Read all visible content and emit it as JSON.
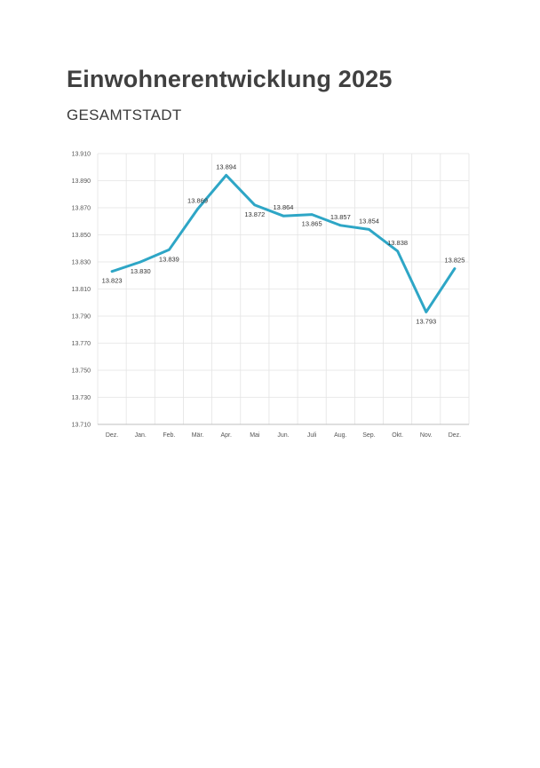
{
  "page": {
    "title": "Einwohnerentwicklung 2025",
    "subtitle": "GESAMTSTADT"
  },
  "colors": {
    "series_line": "#2ea6c6",
    "grid": "#e3e3e3",
    "axis": "#bfbfbf",
    "title_text": "#404040"
  },
  "chart_data": {
    "type": "line",
    "title": "Einwohnerentwicklung 2025",
    "subtitle": "GESAMTSTADT",
    "xlabel": "",
    "ylabel": "",
    "categories": [
      "Dez.",
      "Jan.",
      "Feb.",
      "Mär.",
      "Apr.",
      "Mai",
      "Jun.",
      "Juli",
      "Aug.",
      "Sep.",
      "Okt.",
      "Nov.",
      "Dez."
    ],
    "series": [
      {
        "values": [
          13823,
          13830,
          13839,
          13869,
          13894,
          13872,
          13864,
          13865,
          13857,
          13854,
          13838,
          13793,
          13825
        ],
        "labels": [
          "13.823",
          "13.830",
          "13.839",
          "13.869",
          "13.894",
          "13.872",
          "13.864",
          "13.865",
          "13.857",
          "13.854",
          "13.838",
          "13.793",
          "13.825"
        ],
        "color": "#2ea6c6"
      }
    ],
    "ylim": [
      13710,
      13910
    ],
    "yticks": [
      13710,
      13730,
      13750,
      13770,
      13790,
      13810,
      13830,
      13850,
      13870,
      13890,
      13910
    ],
    "ytick_labels": [
      "13.710",
      "13.730",
      "13.750",
      "13.770",
      "13.790",
      "13.810",
      "13.830",
      "13.850",
      "13.870",
      "13.890",
      "13.910"
    ],
    "grid": true,
    "legend": "none"
  }
}
